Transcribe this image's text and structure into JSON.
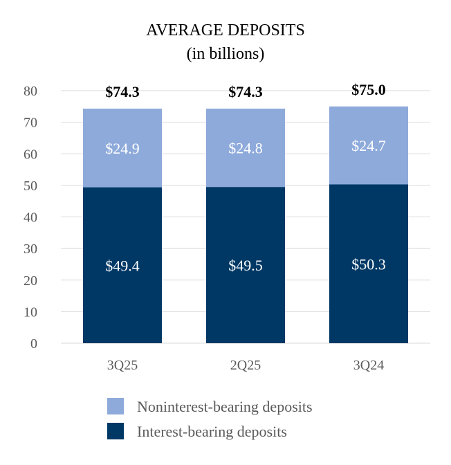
{
  "chart_data": {
    "type": "bar",
    "stacked": true,
    "title": "AVERAGE DEPOSITS",
    "subtitle": "(in billions)",
    "categories": [
      "3Q25",
      "2Q25",
      "3Q24"
    ],
    "series": [
      {
        "name": "Interest-bearing deposits",
        "values": [
          49.4,
          49.5,
          50.3
        ],
        "labels": [
          "$49.4",
          "$49.5",
          "$50.3"
        ],
        "color": "#003865"
      },
      {
        "name": "Noninterest-bearing deposits",
        "values": [
          24.9,
          24.8,
          24.7
        ],
        "labels": [
          "$24.9",
          "$24.8",
          "$24.7"
        ],
        "color": "#8eaadb"
      }
    ],
    "totals": [
      "$74.3",
      "$74.3",
      "$75.0"
    ],
    "ylim": [
      0,
      80
    ],
    "yticks": [
      0,
      10,
      20,
      30,
      40,
      50,
      60,
      70,
      80
    ],
    "grid": true,
    "legend_position": "bottom",
    "legend": [
      {
        "name": "Noninterest-bearing deposits",
        "color": "#8eaadb"
      },
      {
        "name": "Interest-bearing deposits",
        "color": "#003865"
      }
    ]
  }
}
